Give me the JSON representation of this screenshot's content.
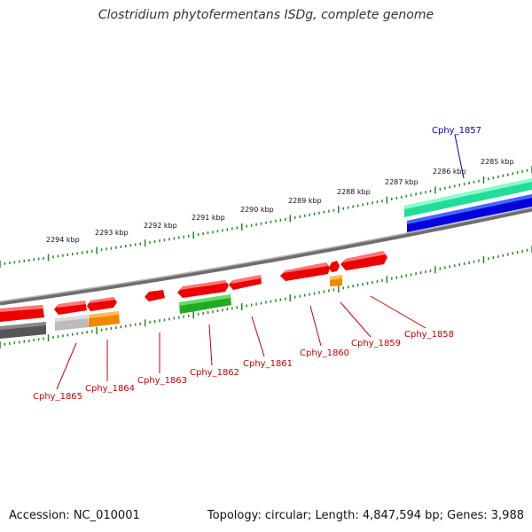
{
  "title": "Clostridium phytofermentans ISDg, complete genome",
  "footer": {
    "accession": "Accession: NC_010001",
    "summary": "Topology: circular; Length: 4,847,594 bp; Genes: 3,988"
  },
  "colors": {
    "forward_cds": "#ee0000",
    "rrna_green": "#22aa22",
    "orange": "#ee8800",
    "gray": "#555555",
    "light_gray": "#bbbbbb",
    "teal": "#22dd99",
    "blue": "#0000dd",
    "tick_green": "#228822",
    "label_red": "#cc0000",
    "label_blue": "#0000cc"
  },
  "scale_labels": [
    "2294 kbp",
    "2293 kbp",
    "2292 kbp",
    "2291 kbp",
    "2290 kbp",
    "2289 kbp",
    "2288 kbp",
    "2287 kbp",
    "2286 kbp",
    "2285 kbp"
  ],
  "gene_labels": [
    {
      "id": "Cphy_1857",
      "color": "blue"
    },
    {
      "id": "Cphy_1858",
      "color": "red"
    },
    {
      "id": "Cphy_1859",
      "color": "red"
    },
    {
      "id": "Cphy_1860",
      "color": "red"
    },
    {
      "id": "Cphy_1861",
      "color": "red"
    },
    {
      "id": "Cphy_1862",
      "color": "red"
    },
    {
      "id": "Cphy_1863",
      "color": "red"
    },
    {
      "id": "Cphy_1864",
      "color": "red"
    },
    {
      "id": "Cphy_1865",
      "color": "red"
    }
  ]
}
